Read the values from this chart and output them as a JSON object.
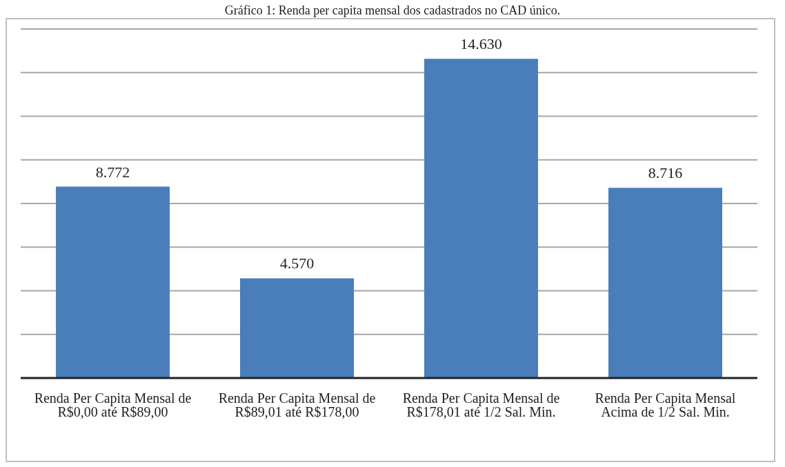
{
  "chart_data": {
    "type": "bar",
    "title": "Gráfico 1: Renda per capita mensal dos cadastrados no CAD único.",
    "categories": [
      "Renda Per Capita Mensal de R$0,00 até R$89,00",
      "Renda Per Capita Mensal de R$89,01 até R$178,00",
      "Renda Per Capita Mensal de R$178,01 até 1/2 Sal. Min.",
      "Renda Per Capita Mensal Acima de 1/2 Sal. Min."
    ],
    "values": [
      8772,
      4570,
      14630,
      8716
    ],
    "color": "#4a7ebb",
    "value_labels": [
      "8.772",
      "4.570",
      "14.630",
      "8.716"
    ],
    "grid": "y",
    "tick_labels": "x",
    "legend": false
  }
}
